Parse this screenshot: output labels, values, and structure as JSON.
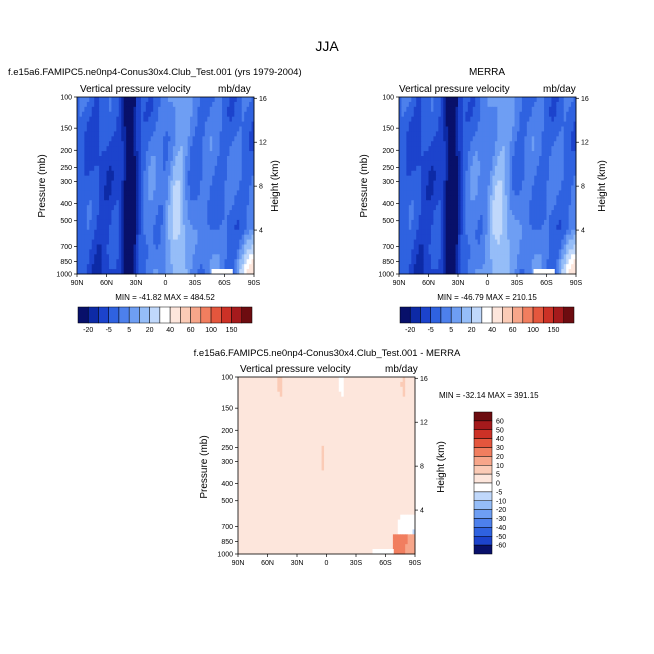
{
  "page": {
    "title": "JJA"
  },
  "palettes": {
    "top": {
      "labels": [
        "-20",
        "-5",
        "5",
        "20",
        "40",
        "60",
        "100",
        "150"
      ],
      "colors": [
        "#08106a",
        "#0d2aa6",
        "#1c43cc",
        "#2f62e0",
        "#4d80ec",
        "#6e9ef3",
        "#95bdf8",
        "#c0d8fb",
        "#ffffff",
        "#fde6dc",
        "#fbcbb6",
        "#f7a68a",
        "#f17e5f",
        "#e4563d",
        "#cc3126",
        "#a51a1c",
        "#6d0c10"
      ]
    },
    "diff": {
      "labels": [
        "60",
        "50",
        "40",
        "30",
        "20",
        "10",
        "5",
        "0",
        "-5",
        "-10",
        "-20",
        "-30",
        "-40",
        "-50",
        "-60"
      ],
      "colors": [
        "#6d0c10",
        "#a51a1c",
        "#cc3126",
        "#e4563d",
        "#f17e5f",
        "#f7a68a",
        "#fbcbb6",
        "#fde6dc",
        "#ffffff",
        "#c0d8fb",
        "#95bdf8",
        "#6e9ef3",
        "#4d80ec",
        "#2f62e0",
        "#1c43cc",
        "#08106a"
      ]
    }
  },
  "chart_data": [
    {
      "type": "heatmap",
      "id": "model",
      "title": "f.e15a6.FAMIPC5.ne0np4-Conus30x4.Club_Test.001 (yrs 1979-2004)",
      "variable": "Vertical pressure velocity",
      "units": "mb/day",
      "xlabel": "",
      "ylabel": "Pressure (mb)",
      "y2label": "Height (km)",
      "xticks": [
        "90N",
        "60N",
        "30N",
        "0",
        "30S",
        "60S",
        "90S"
      ],
      "yticks": [
        100,
        150,
        200,
        250,
        300,
        400,
        500,
        700,
        850,
        1000
      ],
      "y2ticks": [
        4,
        8,
        12,
        16
      ],
      "ylim": [
        1000,
        100
      ],
      "min_max_text": "MIN = -41.82   MAX = 484.52"
    },
    {
      "type": "heatmap",
      "id": "obs",
      "title": "MERRA",
      "variable": "Vertical pressure velocity",
      "units": "mb/day",
      "xlabel": "",
      "ylabel": "Pressure (mb)",
      "y2label": "Height (km)",
      "xticks": [
        "90N",
        "60N",
        "30N",
        "0",
        "30S",
        "60S",
        "90S"
      ],
      "yticks": [
        100,
        150,
        200,
        250,
        300,
        400,
        500,
        700,
        850,
        1000
      ],
      "y2ticks": [
        4,
        8,
        12,
        16
      ],
      "ylim": [
        1000,
        100
      ],
      "min_max_text": "MIN = -46.79   MAX = 210.15"
    },
    {
      "type": "heatmap",
      "id": "diff",
      "title": "f.e15a6.FAMIPC5.ne0np4-Conus30x4.Club_Test.001 - MERRA",
      "variable": "Vertical pressure velocity",
      "units": "mb/day",
      "xlabel": "",
      "ylabel": "Pressure (mb)",
      "y2label": "Height (km)",
      "xticks": [
        "90N",
        "60N",
        "30N",
        "0",
        "30S",
        "60S",
        "90S"
      ],
      "yticks": [
        100,
        150,
        200,
        250,
        300,
        400,
        500,
        700,
        850,
        1000
      ],
      "y2ticks": [
        4,
        8,
        12,
        16
      ],
      "ylim": [
        1000,
        100
      ],
      "min_max_text": "MIN = -32.14   MAX = 391.15"
    }
  ]
}
